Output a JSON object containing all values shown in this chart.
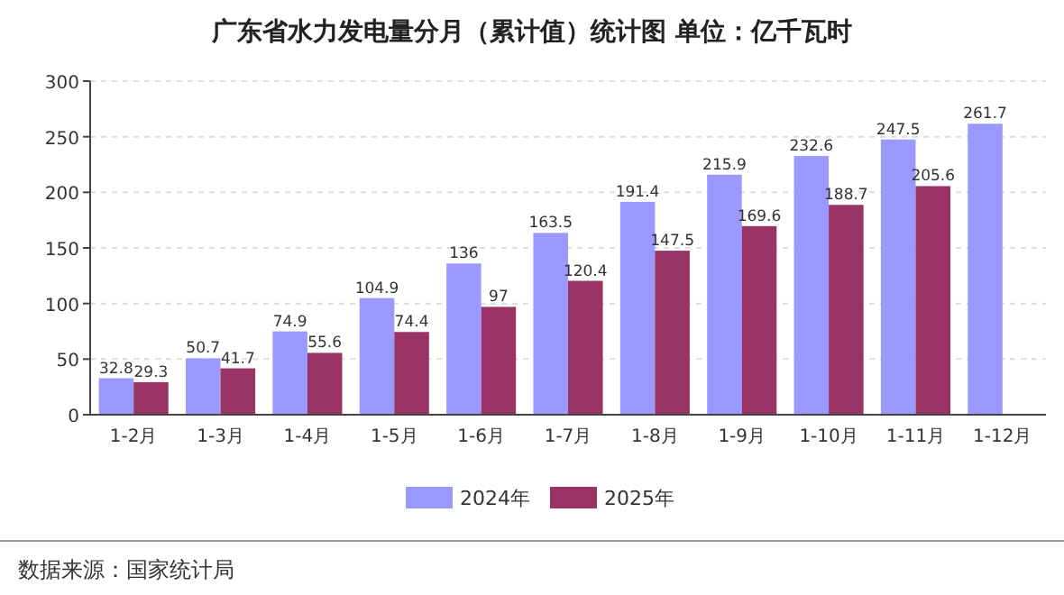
{
  "chart_data": {
    "type": "bar",
    "title": "广东省水力发电量分月（累计值）统计图 单位：亿千瓦时",
    "categories": [
      "1-2月",
      "1-3月",
      "1-4月",
      "1-5月",
      "1-6月",
      "1-7月",
      "1-8月",
      "1-9月",
      "1-10月",
      "1-11月",
      "1-12月"
    ],
    "series": [
      {
        "name": "2024年",
        "color": "#9999ff",
        "values": [
          32.8,
          50.7,
          74.9,
          104.9,
          136,
          163.5,
          191.4,
          215.9,
          232.6,
          247.5,
          261.7
        ]
      },
      {
        "name": "2025年",
        "color": "#993366",
        "values": [
          29.3,
          41.7,
          55.6,
          74.4,
          97,
          120.4,
          147.5,
          169.6,
          188.7,
          205.6,
          null
        ]
      }
    ],
    "ylim": [
      0,
      300
    ],
    "yticks": [
      0,
      50,
      100,
      150,
      200,
      250,
      300
    ],
    "grid": "y",
    "legend": "bottom",
    "data_labels": true,
    "annotations": [
      "数据来源：国家统计局"
    ]
  }
}
